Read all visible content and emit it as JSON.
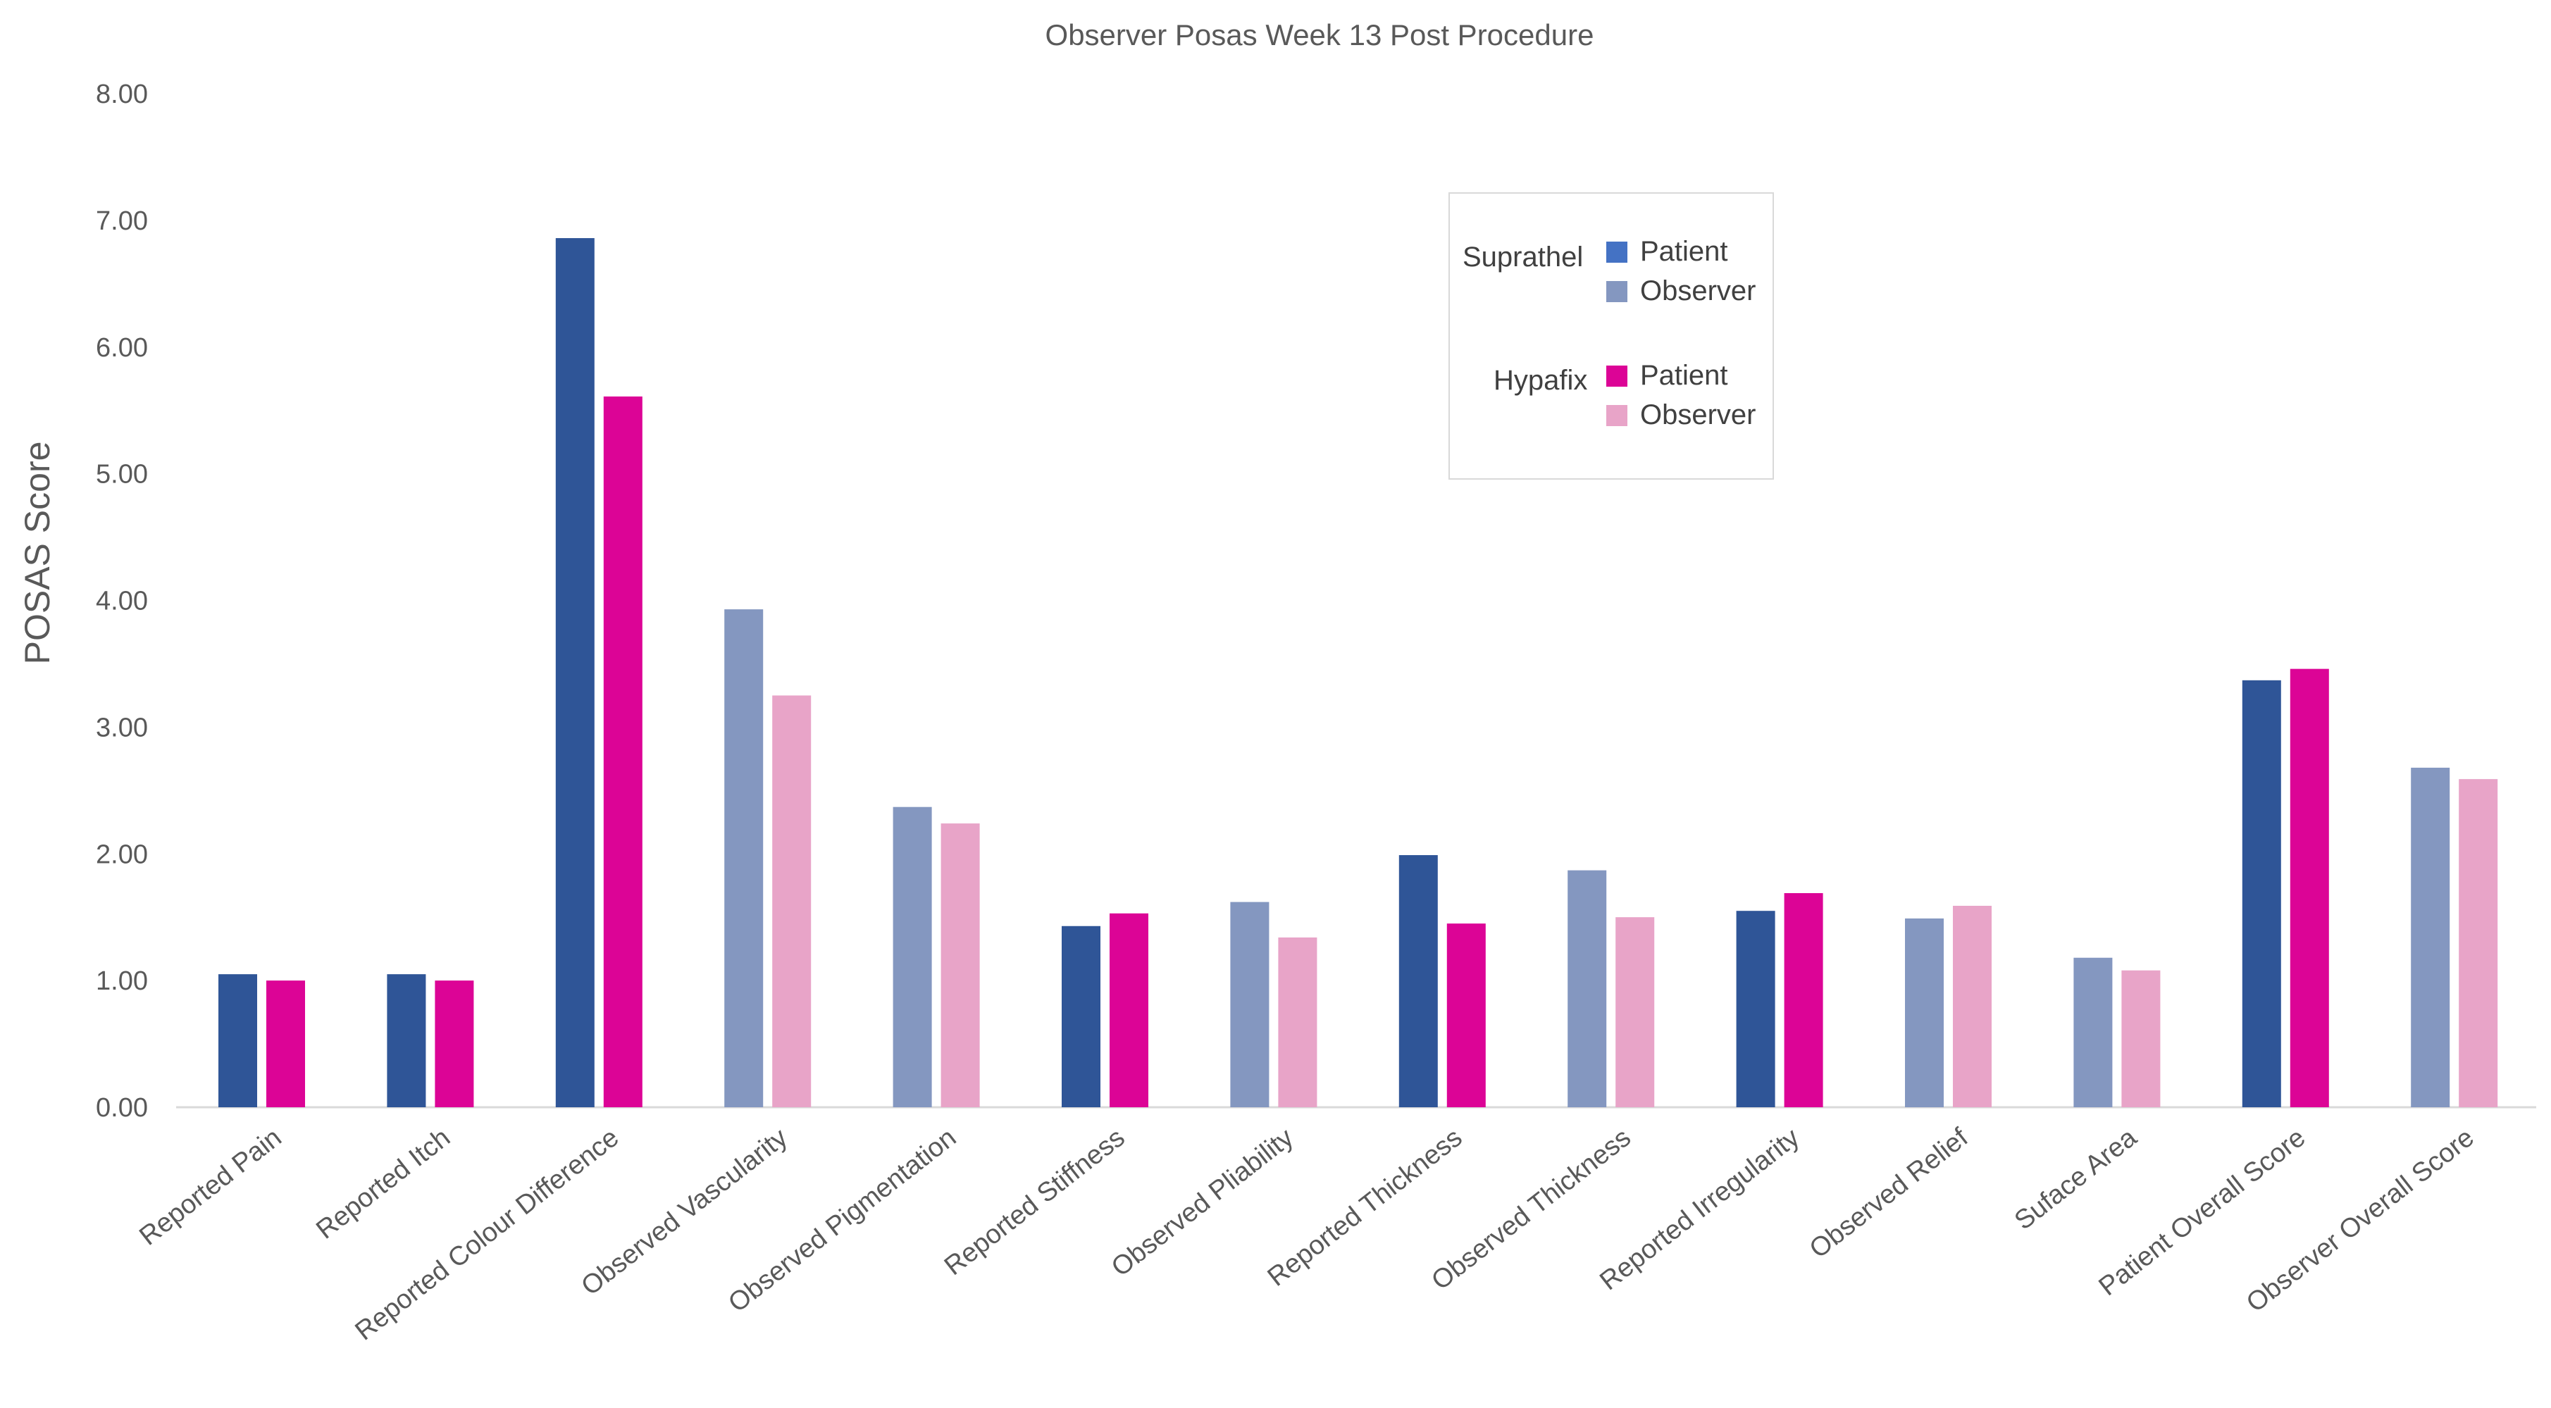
{
  "chart_data": {
    "type": "bar",
    "title": "Observer Posas Week 13 Post Procedure",
    "xlabel": "",
    "ylabel": "POSAS Score",
    "ylim": [
      0,
      8
    ],
    "yticks": [
      "0.00",
      "1.00",
      "2.00",
      "3.00",
      "4.00",
      "5.00",
      "6.00",
      "7.00",
      "8.00"
    ],
    "grid": false,
    "legend_position": "top-right",
    "categories": [
      "Reported Pain",
      "Reported Itch",
      "Reported Colour Difference",
      "Observed Vascularity",
      "Observed Pigmentation",
      "Reported Stiffness",
      "Observed Pliability",
      "Reported Thickness",
      "Observed Thickness",
      "Reported Irregularity",
      "Observed Relief",
      "Suface Area",
      "Patient Overall Score",
      "Observer Overall Score"
    ],
    "series": [
      {
        "name": "Suprathel",
        "values": [
          1.05,
          1.05,
          6.86,
          3.93,
          2.37,
          1.43,
          1.62,
          1.99,
          1.87,
          1.55,
          1.49,
          1.18,
          3.37,
          2.68
        ],
        "colors": [
          "#2f5597",
          "#2f5597",
          "#2f5597",
          "#8497c0",
          "#8497c0",
          "#2f5597",
          "#8497c0",
          "#2f5597",
          "#8497c0",
          "#2f5597",
          "#8497c0",
          "#8497c0",
          "#2f5597",
          "#8497c0"
        ]
      },
      {
        "name": "Hypafix",
        "values": [
          1.0,
          1.0,
          5.61,
          3.25,
          2.24,
          1.53,
          1.34,
          1.45,
          1.5,
          1.69,
          1.59,
          1.08,
          3.46,
          2.59
        ],
        "colors": [
          "#dc0496",
          "#dc0496",
          "#dc0496",
          "#e8a4c8",
          "#e8a4c8",
          "#dc0496",
          "#e8a4c8",
          "#dc0496",
          "#e8a4c8",
          "#dc0496",
          "#e8a4c8",
          "#e8a4c8",
          "#dc0496",
          "#e8a4c8"
        ]
      }
    ],
    "legend": [
      {
        "group": "Suprathel",
        "entries": [
          {
            "label": "Patient",
            "color": "#4472c4"
          },
          {
            "label": "Observer",
            "color": "#8497c0"
          }
        ]
      },
      {
        "group": "Hypafix",
        "entries": [
          {
            "label": "Patient",
            "color": "#dc0496"
          },
          {
            "label": "Observer",
            "color": "#e8a4c8"
          }
        ]
      }
    ]
  }
}
